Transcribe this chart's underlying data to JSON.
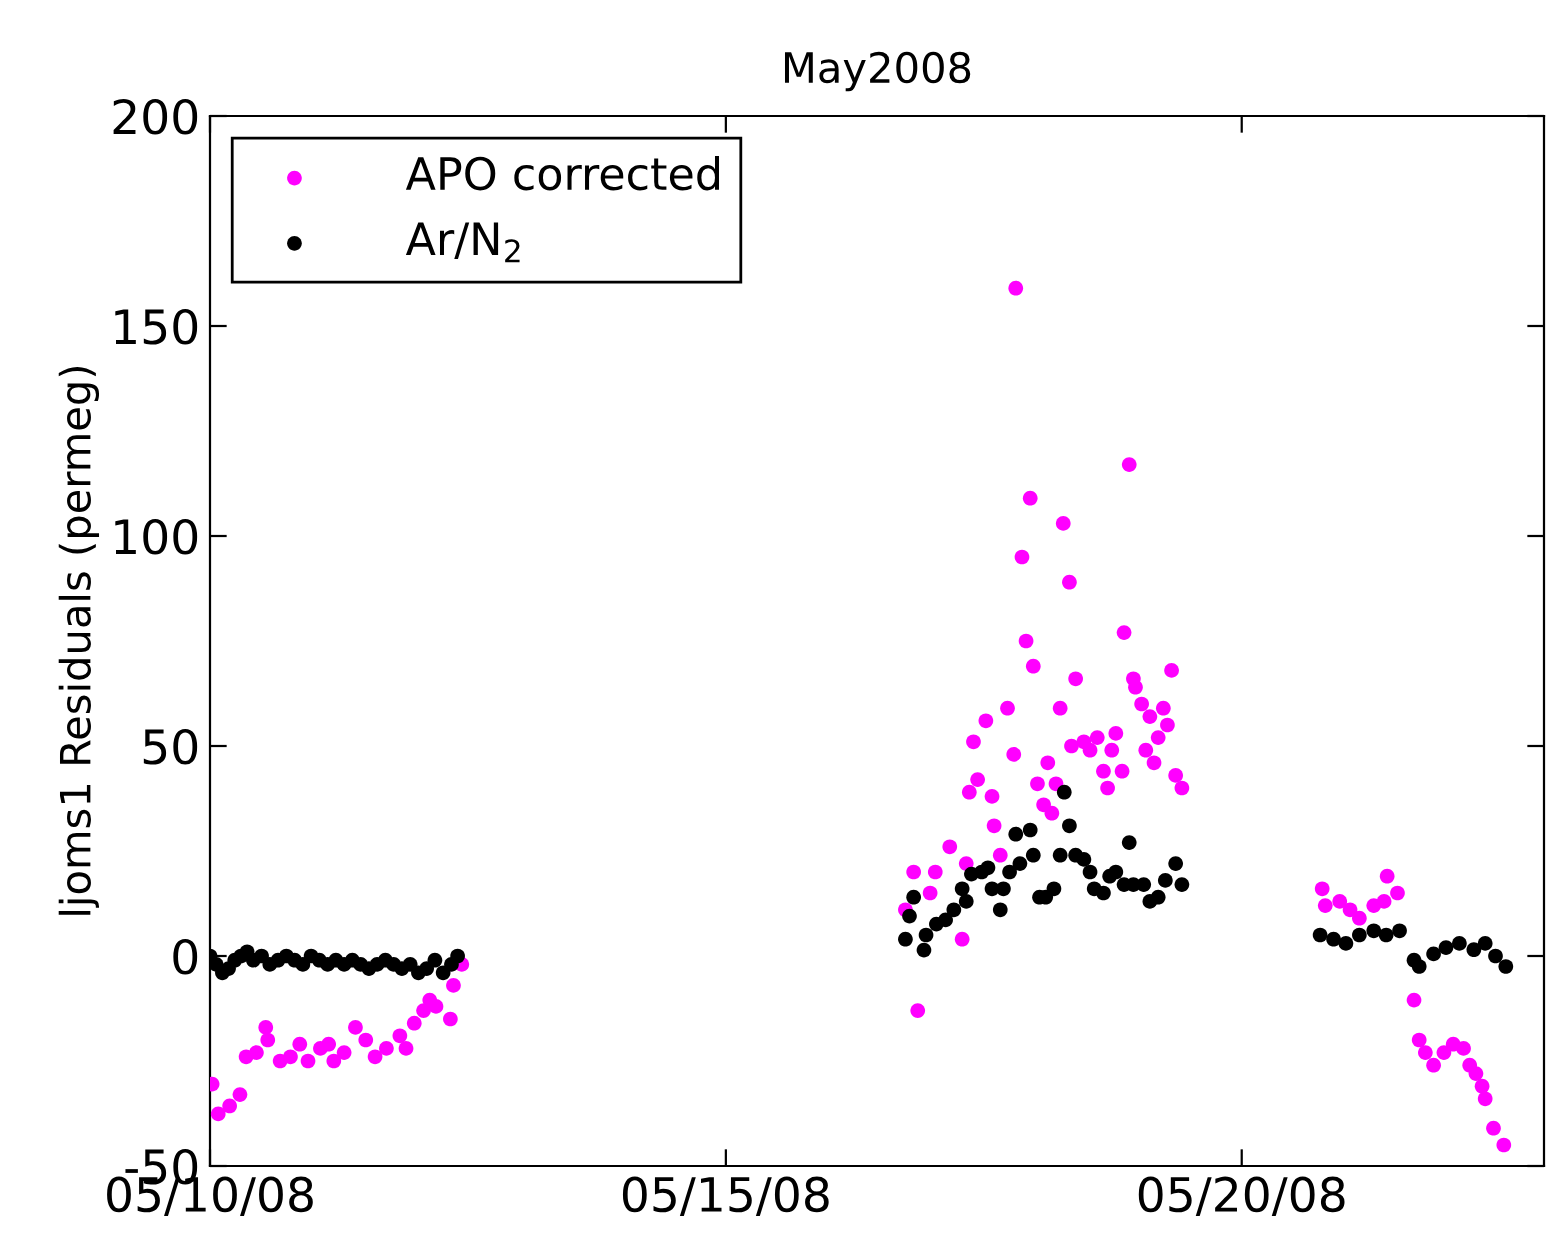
{
  "chart_data": {
    "type": "scatter",
    "title": "May2008",
    "ylabel": "ljoms1 Residuals (permeg)",
    "xlim": [
      "2008-05-10",
      "2008-05-22T22:19"
    ],
    "xticks": [
      {
        "value": "2008-05-10",
        "label": "05/10/08"
      },
      {
        "value": "2008-05-15",
        "label": "05/15/08"
      },
      {
        "value": "2008-05-20",
        "label": "05/20/08"
      }
    ],
    "ylim": [
      -50,
      200
    ],
    "yticks": [
      -50,
      0,
      50,
      100,
      150,
      200
    ],
    "grid": false,
    "legend": "top left",
    "marker": "circle",
    "series": [
      {
        "name": "APO corrected",
        "color": "#ff00ff",
        "x": [
          "2008-05-10T00:30",
          "2008-05-10T01:55",
          "2008-05-10T04:34",
          "2008-05-10T06:58",
          "2008-05-10T08:24",
          "2008-05-10T10:48",
          "2008-05-10T12:58",
          "2008-05-10T13:26",
          "2008-05-10T16:19",
          "2008-05-10T18:43",
          "2008-05-10T20:53",
          "2008-05-10T22:48",
          "2008-05-11T01:41",
          "2008-05-11T03:36",
          "2008-05-11T04:48",
          "2008-05-11T07:12",
          "2008-05-11T09:50",
          "2008-05-11T12:14",
          "2008-05-11T14:24",
          "2008-05-11T17:02",
          "2008-05-11T20:10",
          "2008-05-11T21:36",
          "2008-05-11T23:31",
          "2008-05-12T01:41",
          "2008-05-12T03:07",
          "2008-05-12T04:34",
          "2008-05-12T07:55",
          "2008-05-12T08:38",
          "2008-05-12T10:34",
          "2008-05-16T20:38",
          "2008-05-16T17:46",
          "2008-05-16T19:41",
          "2008-05-16T23:31",
          "2008-05-17T00:43",
          "2008-05-17T04:05",
          "2008-05-17T06:58",
          "2008-05-17T07:55",
          "2008-05-17T08:38",
          "2008-05-17T10:34",
          "2008-05-17T09:36",
          "2008-05-17T12:29",
          "2008-05-17T14:24",
          "2008-05-17T13:55",
          "2008-05-17T15:50",
          "2008-05-17T17:31",
          "2008-05-17T18:58",
          "2008-05-17T19:26",
          "2008-05-17T20:53",
          "2008-05-17T21:50",
          "2008-05-17T22:48",
          "2008-05-17T23:31",
          "2008-05-18T00:29",
          "2008-05-18T01:55",
          "2008-05-18T02:53",
          "2008-05-18T03:50",
          "2008-05-18T04:48",
          "2008-05-18T05:46",
          "2008-05-18T06:29",
          "2008-05-18T07:55",
          "2008-05-18T08:24",
          "2008-05-18T09:22",
          "2008-05-18T11:17",
          "2008-05-18T12:43",
          "2008-05-18T14:24",
          "2008-05-18T15:50",
          "2008-05-18T16:48",
          "2008-05-18T17:46",
          "2008-05-18T18:43",
          "2008-05-18T20:10",
          "2008-05-18T20:38",
          "2008-05-18T21:50",
          "2008-05-18T22:48",
          "2008-05-18T23:17",
          "2008-05-19T00:43",
          "2008-05-19T01:41",
          "2008-05-19T02:38",
          "2008-05-19T03:36",
          "2008-05-19T04:34",
          "2008-05-19T05:46",
          "2008-05-19T06:43",
          "2008-05-19T07:41",
          "2008-05-19T08:38",
          "2008-05-19T10:05",
          "2008-05-20T18:43",
          "2008-05-20T19:26",
          "2008-05-20T22:48",
          "2008-05-21T01:12",
          "2008-05-21T03:22",
          "2008-05-21T06:43",
          "2008-05-21T09:07",
          "2008-05-21T09:50",
          "2008-05-21T12:14",
          "2008-05-21T16:05",
          "2008-05-21T17:17",
          "2008-05-21T18:43",
          "2008-05-21T20:38",
          "2008-05-21T23:02",
          "2008-05-22T01:12",
          "2008-05-22T03:36",
          "2008-05-22T05:02",
          "2008-05-22T06:29",
          "2008-05-22T07:55",
          "2008-05-22T08:38",
          "2008-05-22T10:34",
          "2008-05-22T12:58"
        ],
        "values": [
          -30.5,
          -37.6,
          -35.7,
          -33,
          -24,
          -23,
          -17,
          -20,
          -25,
          -24,
          -21,
          -25,
          -22,
          -21,
          -25,
          -23,
          -17,
          -20,
          -24,
          -22,
          -19,
          -22,
          -16,
          -13,
          -10.5,
          -12,
          -15,
          -7,
          -2,
          -13,
          11,
          20,
          15,
          20,
          26,
          4,
          22,
          39,
          42,
          51,
          56,
          31,
          38,
          24,
          59,
          48,
          159,
          95,
          75,
          109,
          69,
          41,
          36,
          46,
          34,
          41,
          59,
          103,
          89,
          50,
          66,
          51,
          49,
          52,
          44,
          40,
          49,
          53,
          44,
          77,
          117,
          66,
          64,
          60,
          49,
          57,
          46,
          52,
          59,
          55,
          68,
          43,
          40,
          16,
          12,
          13,
          11,
          9,
          12,
          13,
          19,
          15,
          -10.5,
          -20,
          -23,
          -26,
          -23,
          -21,
          -22,
          -26,
          -28,
          -31,
          -34,
          -41,
          -45
        ]
      },
      {
        "name": "Ar/N$_{2}$",
        "color": "#000000",
        "x": [
          "2008-05-10T00:00",
          "2008-05-10T01:26",
          "2008-05-10T02:53",
          "2008-05-10T04:19",
          "2008-05-10T05:46",
          "2008-05-10T07:12",
          "2008-05-10T08:38",
          "2008-05-10T10:05",
          "2008-05-10T12:00",
          "2008-05-10T13:55",
          "2008-05-10T15:50",
          "2008-05-10T17:46",
          "2008-05-10T19:41",
          "2008-05-10T21:36",
          "2008-05-10T23:31",
          "2008-05-11T01:26",
          "2008-05-11T03:22",
          "2008-05-11T05:17",
          "2008-05-11T07:12",
          "2008-05-11T09:07",
          "2008-05-11T11:02",
          "2008-05-11T12:58",
          "2008-05-11T14:53",
          "2008-05-11T16:48",
          "2008-05-11T18:43",
          "2008-05-11T20:38",
          "2008-05-11T22:34",
          "2008-05-12T00:29",
          "2008-05-12T02:24",
          "2008-05-12T04:19",
          "2008-05-12T06:14",
          "2008-05-12T08:10",
          "2008-05-12T09:36",
          "2008-05-16T17:46",
          "2008-05-16T18:43",
          "2008-05-16T19:41",
          "2008-05-16T22:05",
          "2008-05-16T22:34",
          "2008-05-17T00:58",
          "2008-05-17T03:07",
          "2008-05-17T05:02",
          "2008-05-17T06:58",
          "2008-05-17T07:55",
          "2008-05-17T09:07",
          "2008-05-17T11:31",
          "2008-05-17T12:58",
          "2008-05-17T13:55",
          "2008-05-17T15:50",
          "2008-05-17T16:34",
          "2008-05-17T18:00",
          "2008-05-17T19:26",
          "2008-05-17T20:24",
          "2008-05-17T22:48",
          "2008-05-17T23:31",
          "2008-05-18T00:58",
          "2008-05-18T02:24",
          "2008-05-18T04:19",
          "2008-05-18T05:46",
          "2008-05-18T06:43",
          "2008-05-18T07:55",
          "2008-05-18T09:22",
          "2008-05-18T11:17",
          "2008-05-18T12:43",
          "2008-05-18T13:41",
          "2008-05-18T15:50",
          "2008-05-18T17:17",
          "2008-05-18T18:43",
          "2008-05-18T20:38",
          "2008-05-18T21:50",
          "2008-05-18T22:48",
          "2008-05-19T01:12",
          "2008-05-19T02:38",
          "2008-05-19T04:34",
          "2008-05-19T06:14",
          "2008-05-19T08:38",
          "2008-05-19T10:05",
          "2008-05-20T18:14",
          "2008-05-20T21:22",
          "2008-05-21T00:14",
          "2008-05-21T03:22",
          "2008-05-21T06:43",
          "2008-05-21T09:36",
          "2008-05-21T12:43",
          "2008-05-21T16:05",
          "2008-05-21T17:17",
          "2008-05-21T20:38",
          "2008-05-21T23:31",
          "2008-05-22T02:38",
          "2008-05-22T06:00",
          "2008-05-22T08:38",
          "2008-05-22T11:02",
          "2008-05-22T13:26"
        ],
        "values": [
          0,
          -2,
          -4,
          -3,
          -1,
          0,
          1,
          -1,
          0,
          -2,
          -1,
          0,
          -1,
          -2,
          0,
          -1,
          -2,
          -1,
          -2,
          -1,
          -2,
          -3,
          -2,
          -1,
          -2,
          -3,
          -2,
          -4,
          -3,
          -1,
          -4,
          -2,
          0,
          4,
          9.5,
          14,
          1.4,
          5,
          7.6,
          8.6,
          11,
          16,
          13,
          19.5,
          20,
          21,
          16,
          11,
          16,
          20,
          29,
          22,
          30,
          24,
          14,
          14,
          16,
          24,
          39,
          31,
          24,
          23,
          20,
          16,
          15,
          19,
          20,
          17,
          27,
          17,
          17,
          13,
          14,
          18,
          22,
          17,
          5,
          4,
          3,
          5,
          6,
          5,
          6,
          -1,
          -2.5,
          0.5,
          2,
          3,
          1.5,
          3,
          0,
          -2.5
        ]
      }
    ]
  }
}
